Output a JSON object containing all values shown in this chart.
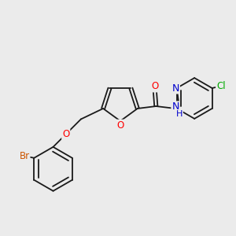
{
  "background_color": "#ebebeb",
  "bond_color": "#1a1a1a",
  "atom_colors": {
    "O": "#ff0000",
    "N": "#0000cc",
    "Br": "#cc5500",
    "Cl": "#00aa00",
    "C": "#1a1a1a",
    "H": "#1a1a1a"
  },
  "figsize": [
    3.0,
    3.0
  ],
  "dpi": 100
}
